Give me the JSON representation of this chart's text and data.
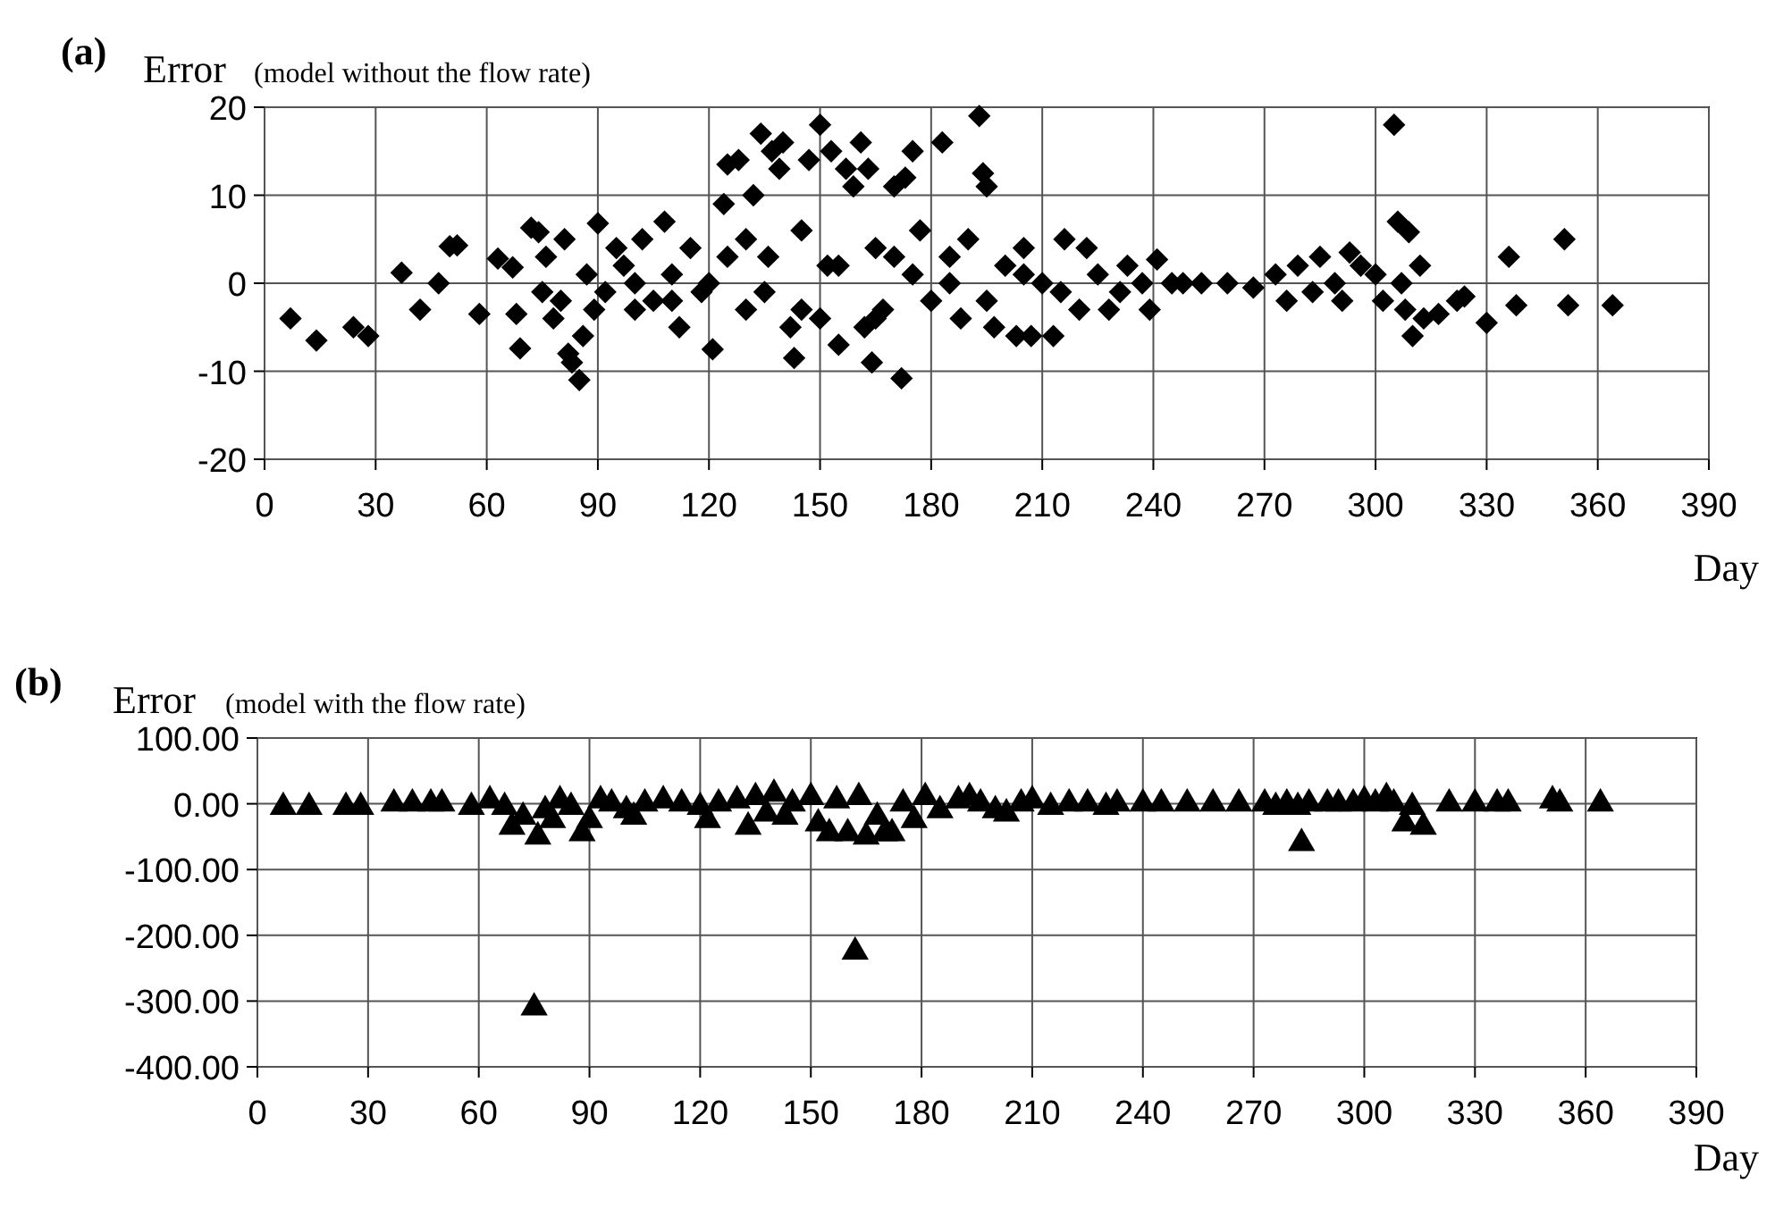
{
  "chart_data": [
    {
      "type": "scatter",
      "title": "(a)",
      "ylabel": "Error",
      "subtitle": "(model without the flow rate)",
      "xlabel": "Day",
      "xlim": [
        0,
        390
      ],
      "xticks": [
        0,
        30,
        60,
        90,
        120,
        150,
        180,
        210,
        240,
        270,
        300,
        330,
        360,
        390
      ],
      "ylim": [
        -20,
        20
      ],
      "yticks": [
        -20,
        -10,
        0,
        10,
        20
      ],
      "grid": true,
      "marker": "diamond",
      "series": [
        {
          "color": "#000000",
          "x": [
            7,
            14,
            24,
            28,
            37,
            42,
            47,
            50,
            52,
            58,
            63,
            67,
            68,
            69,
            72,
            74,
            75,
            76,
            78,
            80,
            81,
            82,
            83,
            85,
            86,
            87,
            89,
            90,
            92,
            95,
            97,
            100,
            102,
            105,
            108,
            110,
            112,
            115,
            118,
            120,
            121,
            124,
            125,
            128,
            130,
            132,
            134,
            136,
            137,
            139,
            140,
            142,
            143,
            145,
            147,
            150,
            152,
            153,
            155,
            157,
            159,
            161,
            162,
            163,
            164,
            165,
            167,
            170,
            172,
            173,
            175,
            177,
            180,
            183,
            185,
            188,
            190,
            193,
            194,
            195,
            197,
            200,
            203,
            205,
            207,
            210,
            213,
            216,
            220,
            222,
            225,
            228,
            231,
            233,
            237,
            239,
            241,
            245,
            248,
            253,
            260,
            267,
            273,
            276,
            279,
            283,
            285,
            289,
            291,
            293,
            296,
            300,
            302,
            305,
            306,
            307,
            308,
            309,
            310,
            312,
            313,
            317,
            322,
            324,
            330,
            336,
            338,
            351,
            352,
            364,
            100,
            110,
            125,
            135,
            145,
            155,
            165,
            175,
            185,
            195,
            205,
            215,
            130,
            150,
            170
          ],
          "values": [
            -4,
            -6.5,
            -5,
            -6,
            1.2,
            -3,
            0,
            4.2,
            4.3,
            -3.5,
            2.8,
            1.8,
            -3.5,
            -7.4,
            6.3,
            5.8,
            -1,
            3,
            -4,
            -2,
            5,
            -8,
            -9,
            -11,
            -6,
            1,
            -3,
            6.8,
            -1,
            4,
            2,
            -3,
            5,
            -2,
            7,
            1,
            -5,
            4,
            -1,
            0,
            -7.5,
            9,
            13.5,
            14,
            -3,
            10,
            17,
            3,
            15,
            13,
            16,
            -5,
            -8.5,
            6,
            14,
            18,
            2,
            15,
            -7,
            13,
            11,
            16,
            -5,
            13,
            -9,
            4,
            -3,
            11,
            -10.8,
            12,
            15,
            6,
            -2,
            16,
            3,
            -4,
            5,
            19,
            12.5,
            11,
            -5,
            2,
            -6,
            4,
            -6,
            0,
            -6,
            5,
            -3,
            4,
            1,
            -3,
            -1,
            2,
            0,
            -3,
            2.7,
            0,
            0,
            0,
            0,
            -0.5,
            1,
            -2,
            2,
            -1,
            3,
            0,
            -2,
            3.5,
            2,
            1,
            -2,
            18,
            7,
            0,
            -3,
            5.8,
            -6,
            2,
            -4,
            -3.5,
            -2,
            -1.5,
            -4.5,
            3,
            -2.5,
            5,
            -2.5,
            -2.5,
            0,
            -2,
            3,
            -1,
            -3,
            2,
            -4,
            1,
            0,
            -2,
            1,
            -1,
            5,
            -4,
            3
          ]
        }
      ]
    },
    {
      "type": "scatter",
      "title": "(b)",
      "ylabel": "Error",
      "subtitle": "(model with the flow rate)",
      "xlabel": "Day",
      "xlim": [
        0,
        390
      ],
      "xticks": [
        0,
        30,
        60,
        90,
        120,
        150,
        180,
        210,
        240,
        270,
        300,
        330,
        360,
        390
      ],
      "ylim": [
        -400,
        100
      ],
      "yticks": [
        {
          "value": -400,
          "label": "-400.00"
        },
        {
          "value": -300,
          "label": "-300.00"
        },
        {
          "value": -200,
          "label": "-200.00"
        },
        {
          "value": -100,
          "label": "-100.00"
        },
        {
          "value": 0,
          "label": "0.00"
        },
        {
          "value": 100,
          "label": "100.00"
        }
      ],
      "grid": true,
      "marker": "triangle",
      "series": [
        {
          "color": "#000000",
          "x": [
            7,
            14,
            24,
            28,
            37,
            42,
            47,
            50,
            58,
            63,
            67,
            69,
            72,
            75,
            76,
            78,
            80,
            82,
            85,
            88,
            90,
            93,
            96,
            100,
            102,
            105,
            110,
            115,
            120,
            122,
            125,
            130,
            133,
            135,
            138,
            140,
            143,
            145,
            150,
            152,
            155,
            157,
            160,
            162,
            163,
            165,
            168,
            170,
            172,
            175,
            178,
            181,
            185,
            190,
            193,
            196,
            200,
            203,
            207,
            210,
            215,
            220,
            225,
            230,
            233,
            240,
            245,
            252,
            259,
            266,
            273,
            276,
            279,
            282,
            283,
            285,
            290,
            293,
            297,
            300,
            303,
            306,
            308,
            311,
            313,
            316,
            323,
            330,
            336,
            339,
            351,
            353,
            364
          ],
          "values": [
            -5,
            -5,
            -5,
            -5,
            0,
            0,
            0,
            0,
            -5,
            5,
            -5,
            -35,
            -20,
            -310,
            -50,
            -10,
            -25,
            5,
            -5,
            -45,
            -25,
            5,
            0,
            -10,
            -20,
            0,
            5,
            0,
            -5,
            -25,
            0,
            5,
            -35,
            10,
            -15,
            15,
            -20,
            0,
            10,
            -30,
            -45,
            5,
            -45,
            -225,
            10,
            -50,
            -20,
            -45,
            -45,
            0,
            -25,
            10,
            -10,
            5,
            10,
            0,
            -10,
            -15,
            0,
            5,
            -5,
            0,
            0,
            -5,
            0,
            0,
            0,
            0,
            0,
            0,
            0,
            -5,
            0,
            -5,
            -60,
            0,
            0,
            0,
            0,
            5,
            0,
            10,
            0,
            -30,
            -5,
            -35,
            0,
            0,
            0,
            0,
            5,
            0,
            0
          ]
        }
      ]
    }
  ]
}
